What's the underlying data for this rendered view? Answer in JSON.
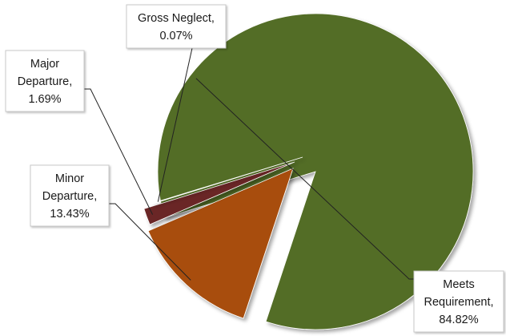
{
  "chart_data": {
    "type": "pie",
    "title": "",
    "exploded": true,
    "shadow": true,
    "slices": [
      {
        "label": "Meets Requirement",
        "value": 84.82,
        "display": "84.82%",
        "color": "#536d26"
      },
      {
        "label": "Minor Departure",
        "value": 13.43,
        "display": "13.43%",
        "color": "#a84e0b"
      },
      {
        "label": "Major Departure",
        "value": 1.69,
        "display": "1.69%",
        "color": "#6a2727"
      },
      {
        "label": "Gross Neglect",
        "value": 0.07,
        "display": "0.07%",
        "color": "#4e6a8c"
      }
    ],
    "labels": [
      {
        "lines": [
          "Meets",
          "Requirement,",
          "84.82%"
        ]
      },
      {
        "lines": [
          "Minor",
          "Departure,",
          "13.43%"
        ]
      },
      {
        "lines": [
          "Major",
          "Departure,",
          "1.69%"
        ]
      },
      {
        "lines": [
          "Gross Neglect,",
          "0.07%"
        ]
      }
    ]
  }
}
